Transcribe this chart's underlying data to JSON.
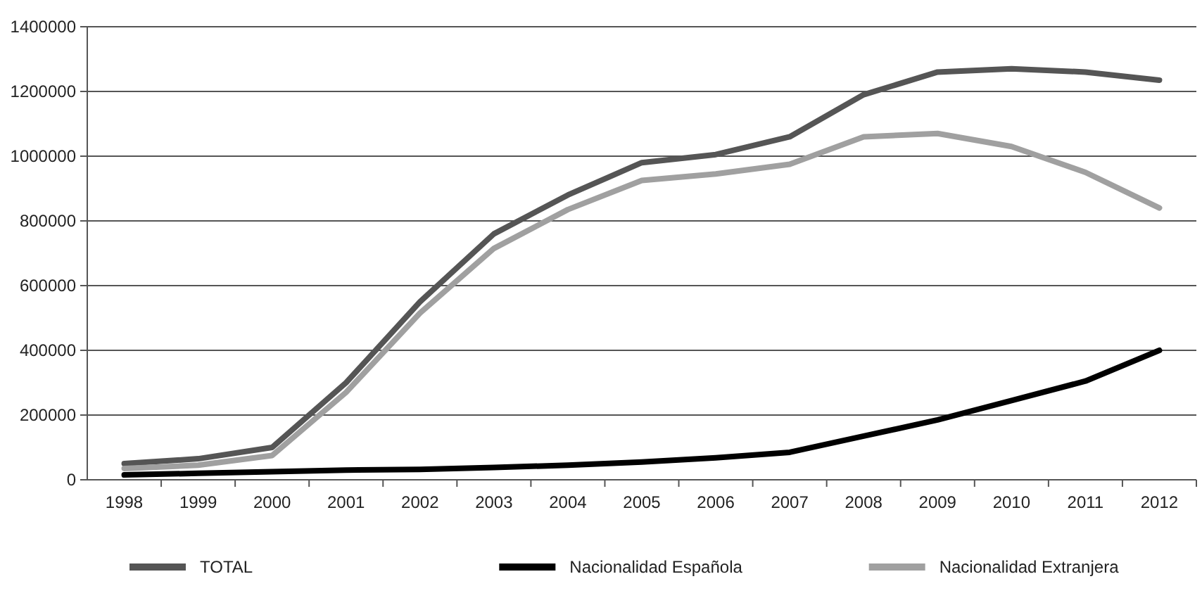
{
  "chart_data": {
    "type": "line",
    "categories": [
      "1998",
      "1999",
      "2000",
      "2001",
      "2002",
      "2003",
      "2004",
      "2005",
      "2006",
      "2007",
      "2008",
      "2009",
      "2010",
      "2011",
      "2012"
    ],
    "series": [
      {
        "name": "TOTAL",
        "color": "#555555",
        "values": [
          50000,
          65000,
          100000,
          300000,
          550000,
          760000,
          880000,
          980000,
          1005000,
          1060000,
          1190000,
          1260000,
          1270000,
          1260000,
          1235000
        ]
      },
      {
        "name": "Nacionalidad Española",
        "color": "#000000",
        "values": [
          15000,
          20000,
          25000,
          30000,
          32000,
          38000,
          45000,
          55000,
          68000,
          85000,
          135000,
          185000,
          245000,
          305000,
          400000
        ]
      },
      {
        "name": "Nacionalidad Extranjera",
        "color": "#a0a0a0",
        "values": [
          35000,
          45000,
          75000,
          270000,
          515000,
          715000,
          835000,
          925000,
          945000,
          975000,
          1060000,
          1070000,
          1030000,
          950000,
          840000
        ]
      }
    ],
    "ylim": [
      0,
      1400000
    ],
    "yticks": [
      0,
      200000,
      400000,
      600000,
      800000,
      1000000,
      1200000,
      1400000
    ],
    "grid": "y",
    "legend": "bottom",
    "line_style": "solid",
    "marker": "none"
  }
}
